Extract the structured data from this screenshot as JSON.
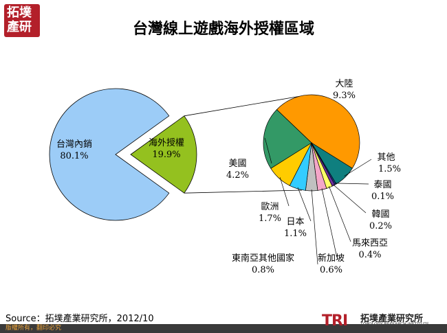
{
  "logo": {
    "line1": "拓墣",
    "line2": "產研"
  },
  "chart_data": {
    "type": "pie",
    "title": "台灣線上遊戲海外授權區域",
    "main": {
      "slices": [
        {
          "label": "台灣內銷",
          "value": 80.1,
          "value_text": "80.1%",
          "color": "#9cccf7"
        },
        {
          "label": "海外授權",
          "value": 19.9,
          "value_text": "19.9%",
          "color": "#94c11f"
        }
      ]
    },
    "breakdown_of": "海外授權",
    "breakdown": {
      "slices": [
        {
          "label": "大陸",
          "value": 9.3,
          "value_text": "9.3%",
          "color": "#ff9900"
        },
        {
          "label": "其他",
          "value": 1.5,
          "value_text": "1.5%",
          "color": "#0f7f7f"
        },
        {
          "label": "泰國",
          "value": 0.1,
          "value_text": "0.1%",
          "color": "#1f3d99"
        },
        {
          "label": "韓國",
          "value": 0.2,
          "value_text": "0.2%",
          "color": "#7030a0"
        },
        {
          "label": "馬來西亞",
          "value": 0.4,
          "value_text": "0.4%",
          "color": "#ffff66"
        },
        {
          "label": "新加坡",
          "value": 0.6,
          "value_text": "0.6%",
          "color": "#f4a6c8"
        },
        {
          "label": "東南亞其他國家",
          "value": 0.8,
          "value_text": "0.8%",
          "color": "#c0c0c0"
        },
        {
          "label": "日本",
          "value": 1.1,
          "value_text": "1.1%",
          "color": "#33ccff"
        },
        {
          "label": "歐洲",
          "value": 1.7,
          "value_text": "1.7%",
          "color": "#ffcc00"
        },
        {
          "label": "美國",
          "value": 4.2,
          "value_text": "4.2%",
          "color": "#339966"
        }
      ]
    }
  },
  "source": "Source：拓墣產業研究所，2012/10",
  "footer": {
    "rights": "版權所有，翻印必究"
  },
  "brand": {
    "mark": "TRI",
    "name": "拓墣產業研究所",
    "sub": "TOPOLOGY RESEARCH INSTITUTE"
  }
}
